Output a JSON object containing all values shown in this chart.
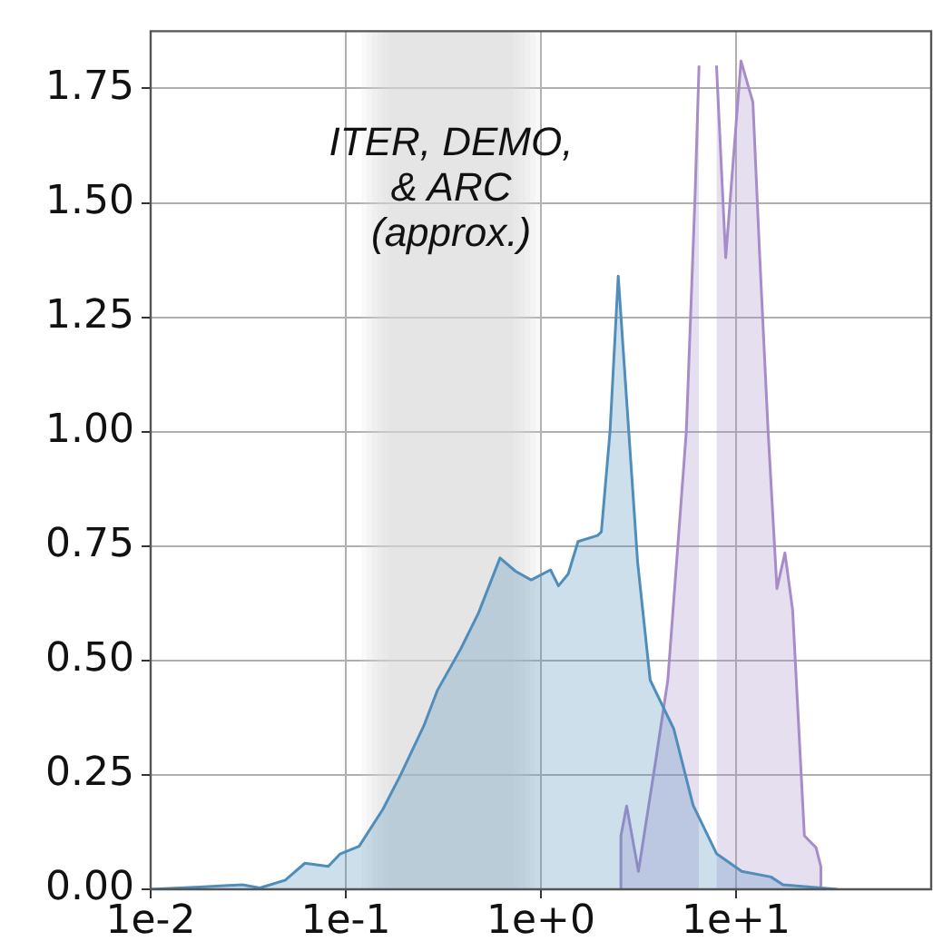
{
  "chart_data": {
    "type": "area",
    "log": "x",
    "grid": true,
    "legend": false,
    "xlim": [
      0.01,
      100
    ],
    "xticks": [
      {
        "value": 0.01,
        "label": "1e-2"
      },
      {
        "value": 0.1,
        "label": "1e-1"
      },
      {
        "value": 1,
        "label": "1e+0"
      },
      {
        "value": 10,
        "label": "1e+1"
      }
    ],
    "ylim": [
      0,
      1.875
    ],
    "yticks": [
      {
        "value": 0,
        "label": "0.00"
      },
      {
        "value": 0.25,
        "label": "0.25"
      },
      {
        "value": 0.5,
        "label": "0.50"
      },
      {
        "value": 0.75,
        "label": "0.75"
      },
      {
        "value": 1,
        "label": "1.00"
      },
      {
        "value": 1.25,
        "label": "1.25"
      },
      {
        "value": 1.5,
        "label": "1.50"
      },
      {
        "value": 1.75,
        "label": "1.75"
      }
    ],
    "bands": [
      {
        "axis": "x",
        "from": 0.12,
        "to": 1.0,
        "label": "ITER, DEMO,\n& ARC\n(approx.)",
        "color": "#dcdcdc"
      }
    ],
    "series": [
      {
        "color": "#4f8dbb",
        "x": [
          0.01,
          0.0178,
          0.0295,
          0.0363,
          0.049,
          0.0617,
          0.0813,
          0.0933,
          0.117,
          0.155,
          0.191,
          0.251,
          0.295,
          0.389,
          0.479,
          0.617,
          0.741,
          0.891,
          1.12,
          1.23,
          1.38,
          1.55,
          1.95,
          2.04,
          2.26,
          2.49,
          2.82,
          3.13,
          3.63,
          4.79,
          6.03,
          7.94,
          10.7,
          15.1,
          17.4,
          33.1
        ],
        "values": [
          0,
          0.005,
          0.01,
          0.003,
          0.02,
          0.057,
          0.05,
          0.077,
          0.094,
          0.175,
          0.25,
          0.357,
          0.435,
          0.526,
          0.604,
          0.724,
          0.695,
          0.676,
          0.698,
          0.663,
          0.689,
          0.76,
          0.773,
          0.781,
          1.0,
          1.34,
          1.0,
          0.715,
          0.457,
          0.351,
          0.183,
          0.078,
          0.039,
          0.027,
          0.01,
          0
        ]
      },
      {
        "color": "#a68cc9",
        "x": [
          2.57,
          2.57,
          2.75,
          3.16,
          3.89,
          4.47,
          5.56,
          6.17,
          6.46,
          7.2,
          7.94,
          8.85,
          10.6,
          12.2,
          13.2,
          14.6,
          16.2,
          17.8,
          19.5,
          22.4,
          25.7,
          27.2,
          27.2
        ],
        "values": [
          0,
          0.117,
          0.182,
          0.039,
          0.286,
          0.457,
          1.0,
          1.52,
          1.8,
          null,
          1.8,
          1.38,
          1.81,
          1.72,
          1.39,
          1.0,
          0.657,
          0.735,
          0.61,
          0.117,
          0.091,
          0.05,
          0
        ]
      }
    ]
  }
}
